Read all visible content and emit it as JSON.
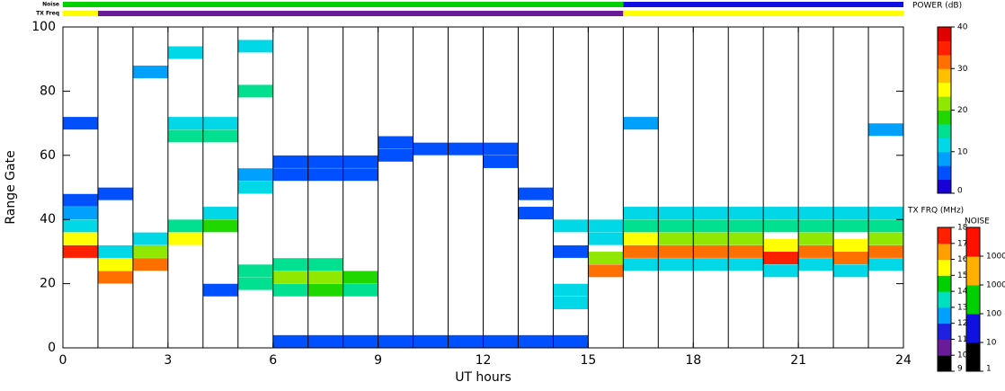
{
  "chart_data": {
    "type": "range-time",
    "xlabel": "UT hours",
    "ylabel": "Range Gate",
    "xlim": [
      0,
      24
    ],
    "xticks": [
      0,
      3,
      6,
      9,
      12,
      15,
      18,
      21,
      24
    ],
    "hour_lines": [
      1,
      2,
      3,
      4,
      5,
      6,
      7,
      8,
      9,
      10,
      11,
      12,
      13,
      14,
      15,
      16,
      17,
      18,
      19,
      20,
      21,
      22,
      23
    ],
    "ylim": [
      0,
      100
    ],
    "yticks": [
      0,
      20,
      40,
      60,
      80,
      100
    ],
    "x": [
      0.5,
      0.5,
      0.5,
      0.5,
      0.5,
      0.5,
      1.5,
      1.5,
      1.5,
      1.5,
      2.5,
      2.5,
      2.5,
      2.5,
      3.5,
      3.5,
      3.5,
      3.5,
      3.5,
      4.5,
      4.5,
      4.5,
      4.5,
      4.5,
      5.5,
      5.5,
      5.5,
      5.5,
      5.5,
      5.5,
      6.5,
      6.5,
      6.5,
      6.5,
      6.5,
      6.5,
      7.5,
      7.5,
      7.5,
      7.5,
      7.5,
      7.5,
      8.5,
      8.5,
      8.5,
      8.5,
      8.5,
      9.5,
      9.5,
      9.5,
      10.5,
      10.5,
      11.5,
      11.5,
      12.5,
      12.5,
      12.5,
      13.5,
      13.5,
      13.5,
      14.5,
      14.5,
      14.5,
      14.5,
      14.5,
      15.5,
      15.5,
      15.5,
      15.5,
      16.5,
      16.5,
      16.5,
      16.5,
      16.5,
      16.5,
      17.5,
      17.5,
      17.5,
      17.5,
      17.5,
      18.5,
      18.5,
      18.5,
      18.5,
      18.5,
      19.5,
      19.5,
      19.5,
      19.5,
      19.5,
      20.5,
      20.5,
      20.5,
      20.5,
      20.5,
      21.5,
      21.5,
      21.5,
      21.5,
      21.5,
      22.5,
      22.5,
      22.5,
      22.5,
      22.5,
      23.5,
      23.5,
      23.5,
      23.5,
      23.5,
      23.5
    ],
    "y": [
      30,
      34,
      38,
      42,
      46,
      70,
      22,
      26,
      30,
      48,
      26,
      30,
      34,
      86,
      34,
      38,
      66,
      70,
      92,
      38,
      42,
      66,
      70,
      18,
      20,
      24,
      50,
      54,
      80,
      94,
      18,
      22,
      26,
      54,
      58,
      2,
      18,
      22,
      26,
      54,
      58,
      2,
      18,
      22,
      54,
      58,
      2,
      60,
      64,
      2,
      62,
      2,
      62,
      2,
      62,
      58,
      2,
      48,
      42,
      2,
      30,
      18,
      14,
      38,
      2,
      24,
      28,
      34,
      38,
      30,
      34,
      38,
      42,
      26,
      70,
      30,
      34,
      38,
      42,
      26,
      30,
      34,
      38,
      42,
      26,
      30,
      34,
      38,
      42,
      26,
      28,
      32,
      38,
      42,
      24,
      30,
      34,
      38,
      42,
      26,
      28,
      32,
      38,
      42,
      24,
      30,
      34,
      38,
      42,
      26,
      68
    ],
    "values": [
      35,
      25,
      10,
      8,
      5,
      5,
      33,
      25,
      12,
      4,
      32,
      22,
      10,
      8,
      25,
      15,
      14,
      12,
      10,
      18,
      12,
      15,
      12,
      5,
      16,
      14,
      10,
      8,
      14,
      12,
      16,
      20,
      14,
      6,
      5,
      4,
      18,
      22,
      14,
      5,
      6,
      4,
      16,
      19,
      5,
      5,
      5,
      5,
      4,
      5,
      5,
      6,
      4,
      6,
      5,
      4,
      6,
      6,
      5,
      5,
      6,
      12,
      10,
      10,
      4,
      32,
      22,
      12,
      10,
      30,
      24,
      15,
      10,
      10,
      8,
      30,
      22,
      14,
      10,
      10,
      32,
      22,
      14,
      10,
      10,
      30,
      22,
      14,
      10,
      12,
      34,
      24,
      14,
      10,
      12,
      32,
      22,
      14,
      10,
      10,
      33,
      24,
      14,
      10,
      12,
      31,
      22,
      14,
      10,
      10,
      8
    ],
    "power_bar": {
      "label": "POWER (dB)",
      "lim": [
        0,
        40
      ],
      "ticks": [
        0,
        10,
        20,
        30,
        40
      ],
      "colors": [
        "#1a00d8",
        "#0050ff",
        "#00a0ff",
        "#00d8e8",
        "#00e090",
        "#20d800",
        "#90e800",
        "#ffff00",
        "#ffc000",
        "#ff7000",
        "#ff2000",
        "#e00000"
      ]
    },
    "tx_bar": {
      "label": "TX FRQ (MHz)",
      "lim": [
        9,
        18
      ],
      "ticks": [
        9,
        10,
        11,
        12,
        13,
        14,
        15,
        16,
        17,
        18
      ],
      "colors": [
        "#000000",
        "#6a1b9a",
        "#2020e0",
        "#00a0ff",
        "#00e0c0",
        "#00d000",
        "#ffff00",
        "#ffa000",
        "#ff2000"
      ]
    },
    "noise_bar": {
      "label": "NOISE",
      "lim": [
        1,
        100000
      ],
      "ticks": [
        1,
        10,
        100,
        1000,
        10000
      ],
      "colors": [
        "#000000",
        "#1010e0",
        "#00d000",
        "#ffb000",
        "#ff1000"
      ]
    },
    "noise_strip": {
      "label": "Noise",
      "edges": [
        0,
        16,
        24
      ],
      "values": [
        300,
        30
      ]
    },
    "tx_strip": {
      "label": "TX Freq",
      "edges": [
        0,
        1,
        16,
        24
      ],
      "values": [
        15.5,
        10.5,
        15.5
      ]
    }
  }
}
